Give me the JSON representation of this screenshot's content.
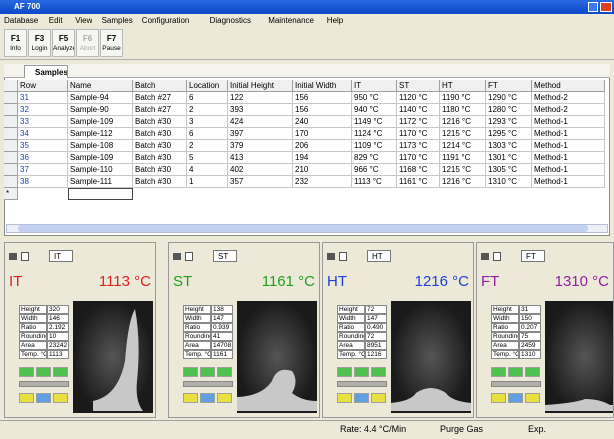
{
  "window": {
    "title": "AF 700"
  },
  "menu": [
    "Database",
    "Edit",
    "View",
    "Samples",
    "Configuration",
    "Diagnostics",
    "Maintenance",
    "Help"
  ],
  "toolbar": [
    {
      "key": "F1",
      "label": "Info"
    },
    {
      "key": "F3",
      "label": "Login"
    },
    {
      "key": "F5",
      "label": "Analyze"
    },
    {
      "key": "F6",
      "label": "Abort"
    },
    {
      "key": "F7",
      "label": "Pause"
    }
  ],
  "tab": "Samples",
  "table": {
    "header": [
      "Row",
      "Name",
      "Batch",
      "Location",
      "Initial Height",
      "Initial Width",
      "IT",
      "ST",
      "HT",
      "FT",
      "Method"
    ],
    "rows": [
      [
        "31",
        "Sample-94",
        "Batch #27",
        "6",
        "122",
        "156",
        "950 °C",
        "1120 °C",
        "1190 °C",
        "1290 °C",
        "Method-2"
      ],
      [
        "32",
        "Sample-90",
        "Batch #27",
        "2",
        "393",
        "156",
        "940 °C",
        "1140 °C",
        "1180 °C",
        "1280 °C",
        "Method-2"
      ],
      [
        "33",
        "Sample-109",
        "Batch #30",
        "3",
        "424",
        "240",
        "1149 °C",
        "1172 °C",
        "1216 °C",
        "1293 °C",
        "Method-1"
      ],
      [
        "34",
        "Sample-112",
        "Batch #30",
        "6",
        "397",
        "170",
        "1124 °C",
        "1170 °C",
        "1215 °C",
        "1295 °C",
        "Method-1"
      ],
      [
        "35",
        "Sample-108",
        "Batch #30",
        "2",
        "379",
        "206",
        "1109 °C",
        "1173 °C",
        "1214 °C",
        "1303 °C",
        "Method-1"
      ],
      [
        "36",
        "Sample-109",
        "Batch #30",
        "5",
        "413",
        "194",
        "829 °C",
        "1170 °C",
        "1191 °C",
        "1301 °C",
        "Method-1"
      ],
      [
        "37",
        "Sample-110",
        "Batch #30",
        "4",
        "402",
        "210",
        "966 °C",
        "1168 °C",
        "1215 °C",
        "1305 °C",
        "Method-1"
      ],
      [
        "38",
        "Sample-111",
        "Batch #30",
        "1",
        "357",
        "232",
        "1113 °C",
        "1161 °C",
        "1216 °C",
        "1310 °C",
        "Method-1"
      ]
    ],
    "new_row_marker": "*"
  },
  "panels": [
    {
      "name": "IT",
      "reading": "1113 °C",
      "color": "#e02020",
      "stats": [
        [
          "Height",
          "320"
        ],
        [
          "Width",
          "146"
        ],
        [
          "Ratio",
          "2.192"
        ],
        [
          "Rounding",
          "10"
        ],
        [
          "Area",
          "23242"
        ],
        [
          "Temp. °C",
          "1113"
        ]
      ]
    },
    {
      "name": "ST",
      "reading": "1161 °C",
      "color": "#20a020",
      "stats": [
        [
          "Height",
          "138"
        ],
        [
          "Width",
          "147"
        ],
        [
          "Ratio",
          "0.939"
        ],
        [
          "Rounding",
          "41"
        ],
        [
          "Area",
          "14708"
        ],
        [
          "Temp. °C",
          "1161"
        ]
      ]
    },
    {
      "name": "HT",
      "reading": "1216 °C",
      "color": "#2040d0",
      "stats": [
        [
          "Height",
          "72"
        ],
        [
          "Width",
          "147"
        ],
        [
          "Ratio",
          "0.490"
        ],
        [
          "Rounding",
          "72"
        ],
        [
          "Area",
          "8951"
        ],
        [
          "Temp. °C",
          "1216"
        ]
      ]
    },
    {
      "name": "FT",
      "reading": "1310 °C",
      "color": "#9020a0",
      "stats": [
        [
          "Height",
          "31"
        ],
        [
          "Width",
          "150"
        ],
        [
          "Ratio",
          "0.207"
        ],
        [
          "Rounding",
          "75"
        ],
        [
          "Area",
          "2459"
        ],
        [
          "Temp. °C",
          "1310"
        ]
      ]
    }
  ],
  "status": {
    "rate": "Rate: 4.4 °C/Min",
    "purge": "Purge Gas",
    "exp": "Exp."
  }
}
